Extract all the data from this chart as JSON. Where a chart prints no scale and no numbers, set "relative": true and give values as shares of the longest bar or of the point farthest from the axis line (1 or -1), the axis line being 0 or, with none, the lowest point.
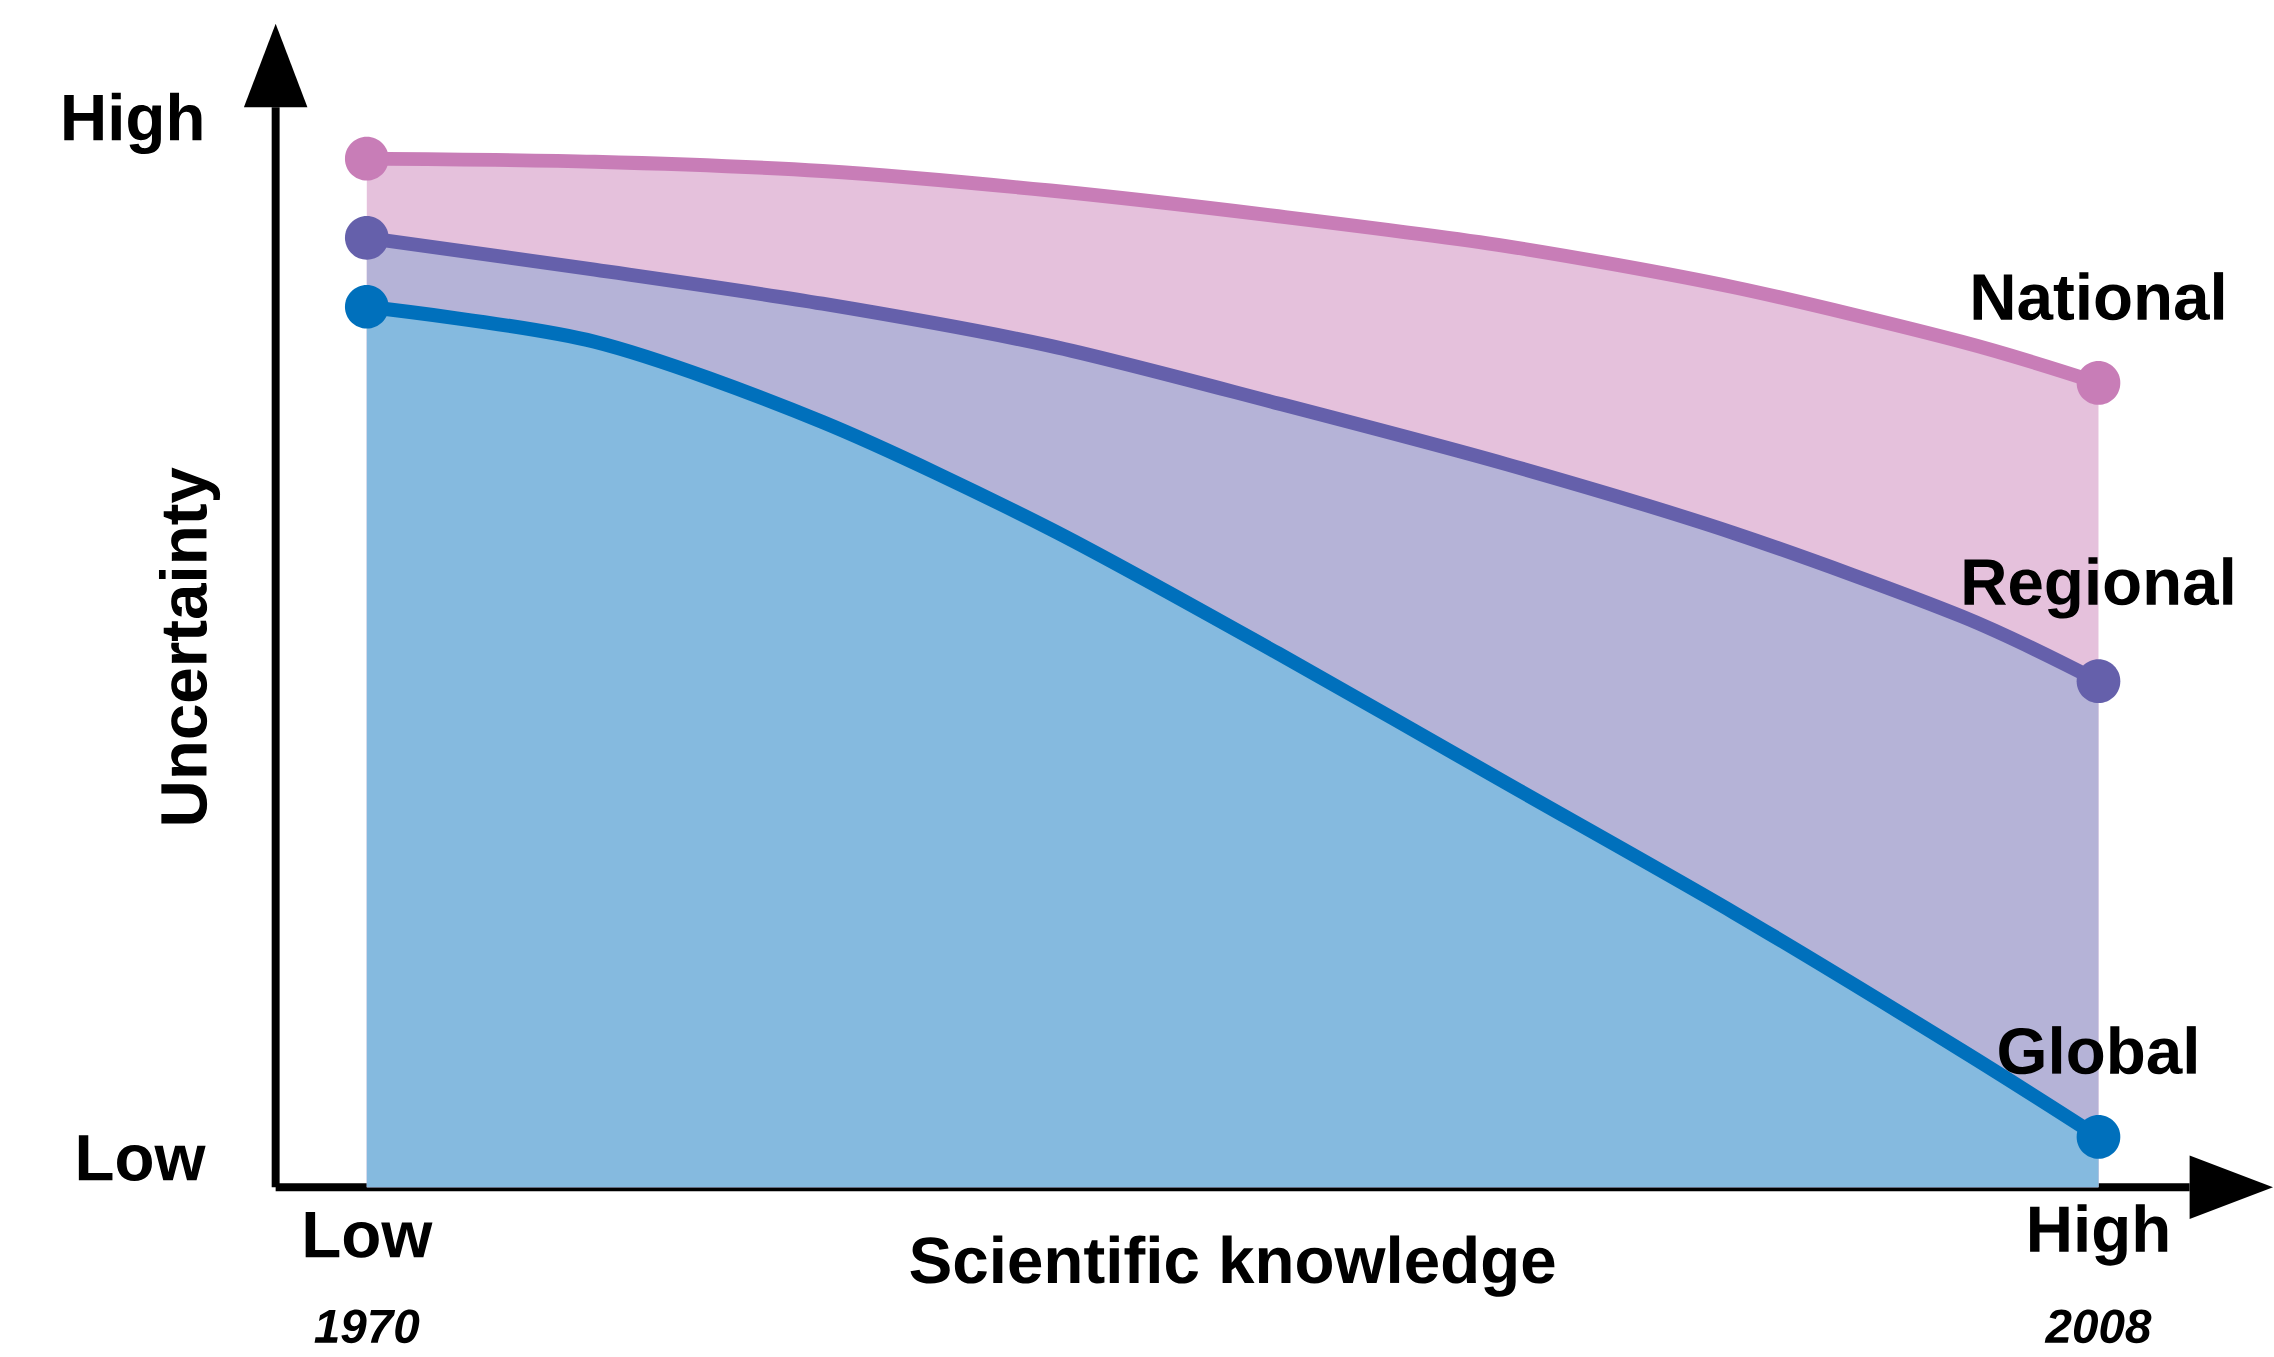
{
  "chart_data": {
    "type": "area",
    "relative": true,
    "xlabel": "Scientific knowledge",
    "ylabel": "Uncertainty",
    "x": [
      1970,
      1975,
      1980,
      1985,
      1990,
      1995,
      2000,
      2005,
      2008
    ],
    "xlim": [
      1968,
      2010
    ],
    "xticks": [
      1970,
      2008
    ],
    "annotations": [
      "High",
      "Low",
      "Low",
      "High"
    ],
    "series": [
      {
        "name": "National",
        "color": "#c87db7",
        "values": [
          1,
          0.997,
          0.988,
          0.969,
          0.944,
          0.915,
          0.875,
          0.822,
          0.782
        ]
      },
      {
        "name": "Regional",
        "color": "#6560ab",
        "values": [
          0.923,
          0.892,
          0.859,
          0.818,
          0.762,
          0.703,
          0.636,
          0.555,
          0.492
        ]
      },
      {
        "name": "Global",
        "color": "#0070bc",
        "values": [
          0.856,
          0.822,
          0.744,
          0.64,
          0.519,
          0.393,
          0.267,
          0.133,
          0.049
        ]
      }
    ],
    "legend": false,
    "grid": false
  }
}
